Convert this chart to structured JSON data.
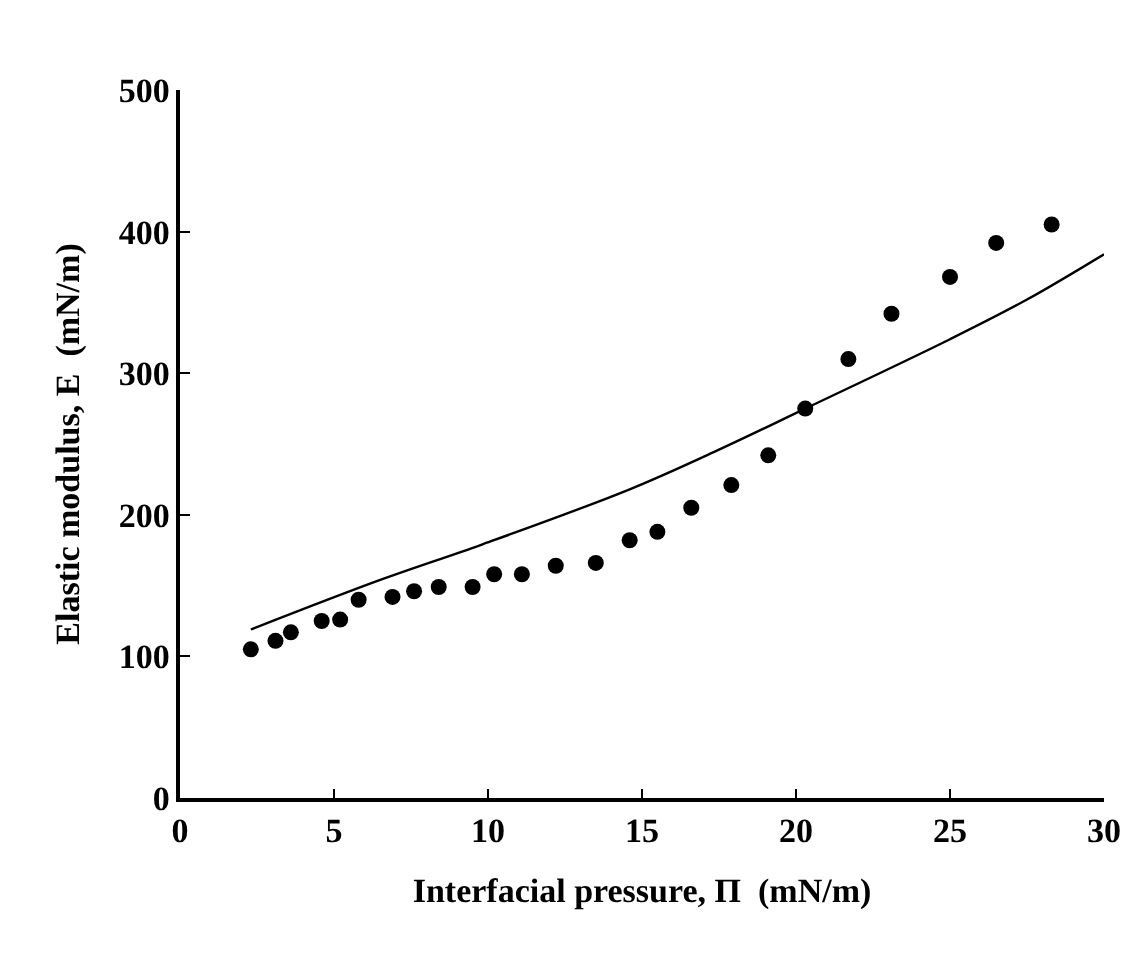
{
  "chart_data": {
    "type": "scatter",
    "xlabel": "Interfacial pressure, Π  (mN/m)",
    "ylabel": "Elastic modulus, E  (mN/m)",
    "xlim": [
      0,
      30
    ],
    "xticks": [
      0,
      5,
      10,
      15,
      20,
      25,
      30
    ],
    "ylim": [
      0,
      500
    ],
    "yticks": [
      0,
      100,
      200,
      300,
      400,
      500
    ],
    "legend": false,
    "series": [
      {
        "marker": "circle",
        "color": "#000000",
        "x": [
          2.3,
          3.1,
          3.6,
          4.6,
          5.2,
          5.8,
          6.9,
          7.6,
          8.4,
          9.5,
          10.2,
          11.1,
          12.2,
          13.5,
          14.6,
          15.5,
          16.6,
          17.9,
          19.1,
          20.3,
          21.7,
          23.1,
          25.0,
          26.5,
          28.3
        ],
        "values": [
          105,
          111,
          117,
          125,
          126,
          140,
          142,
          146,
          149,
          149,
          158,
          158,
          164,
          166,
          182,
          188,
          205,
          221,
          242,
          275,
          310,
          342,
          368,
          392,
          405
        ]
      },
      {
        "type": "line",
        "marker": "none",
        "line_style": "solid",
        "color": "#000000",
        "x": [
          2.3,
          6.5,
          9.8,
          14.6,
          17.5,
          20.3,
          25,
          27.5,
          30
        ],
        "values": [
          119,
          154,
          179,
          218,
          246,
          275,
          324,
          352,
          384
        ]
      }
    ]
  }
}
